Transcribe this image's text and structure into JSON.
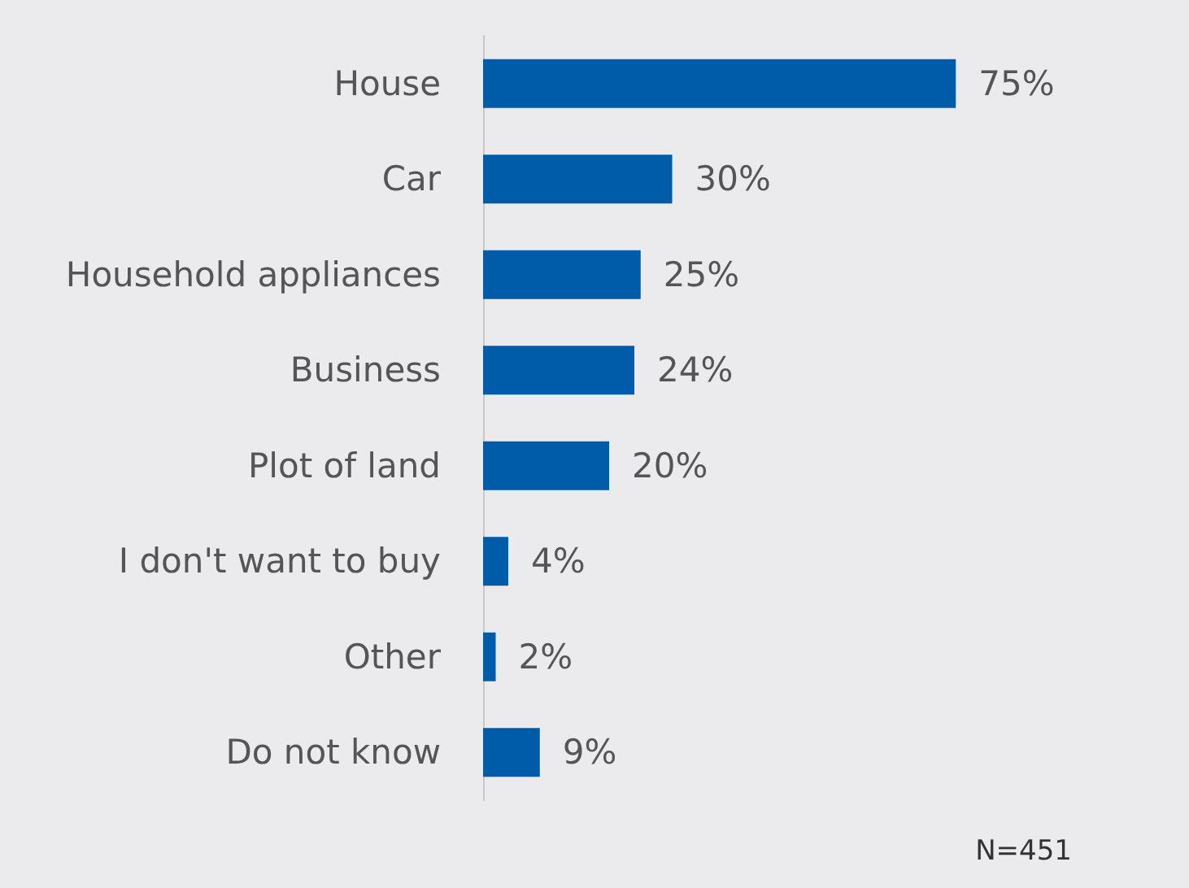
{
  "chart_data": {
    "type": "bar",
    "orientation": "horizontal",
    "categories": [
      "House",
      "Car",
      "Household appliances",
      "Business",
      "Plot of land",
      "I don't want to buy",
      "Other",
      "Do not know"
    ],
    "values": [
      75,
      30,
      25,
      24,
      20,
      4,
      2,
      9
    ],
    "value_labels": [
      "75%",
      "30%",
      "25%",
      "24%",
      "20%",
      "4%",
      "2%",
      "9%"
    ],
    "color": "#005ba8",
    "tick_labels": "y",
    "annotations": [
      "N=451"
    ]
  }
}
